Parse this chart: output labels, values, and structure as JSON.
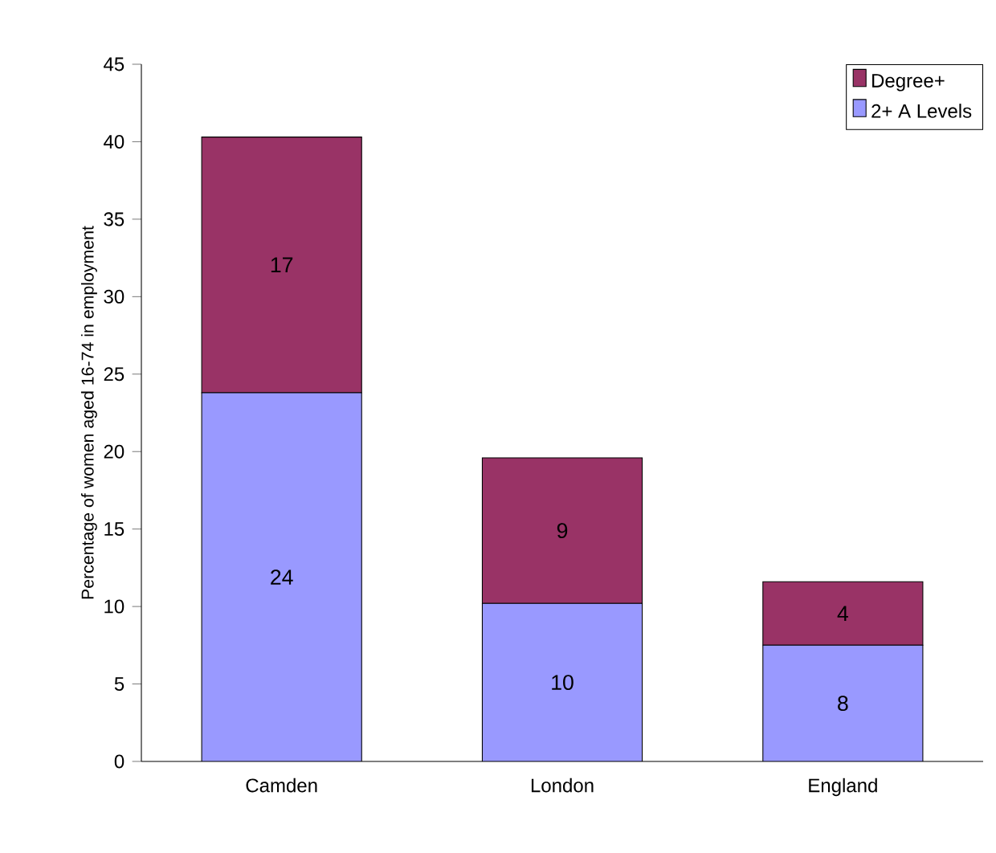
{
  "chart_data": {
    "type": "bar",
    "stacked": true,
    "ylabel": "Percentage of women aged 16-74 in employment",
    "categories": [
      "Camden",
      "London",
      "England"
    ],
    "series": [
      {
        "name": "2+ A Levels",
        "color": "#9999ff",
        "values": [
          23.8,
          10.2,
          7.5
        ],
        "value_labels": [
          "24",
          "10",
          "8"
        ]
      },
      {
        "name": "Degree+",
        "color": "#993366",
        "values": [
          16.5,
          9.4,
          4.1
        ],
        "value_labels": [
          "17",
          "9",
          "4"
        ]
      }
    ],
    "ylim": [
      0,
      45
    ],
    "yticks": [
      0,
      5,
      10,
      15,
      20,
      25,
      30,
      35,
      40,
      45
    ],
    "legend": "top right",
    "grid": false
  }
}
